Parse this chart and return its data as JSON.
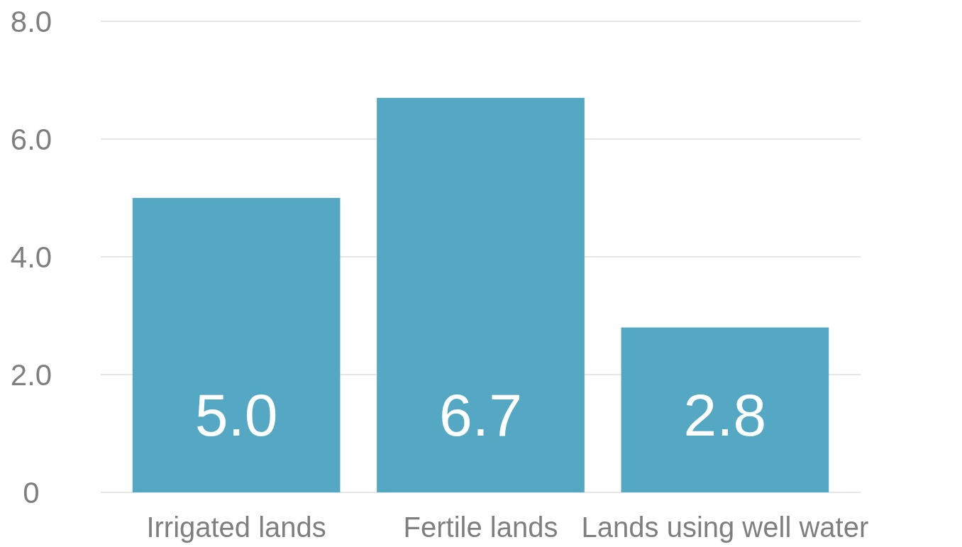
{
  "chart_data": {
    "type": "bar",
    "categories": [
      "Irrigated lands",
      "Fertile lands",
      "Lands using well water"
    ],
    "values": [
      5.0,
      6.7,
      2.8
    ],
    "value_labels": [
      "5.0",
      "6.7",
      "2.8"
    ],
    "color": "#55a8c4",
    "grid": "y",
    "ylim": [
      0,
      8
    ],
    "yticks": [
      {
        "value": 0,
        "label": "0"
      },
      {
        "value": 2,
        "label": "2.0"
      },
      {
        "value": 4,
        "label": "4.0"
      },
      {
        "value": 6,
        "label": "6.0"
      },
      {
        "value": 8,
        "label": "8.0"
      }
    ]
  }
}
